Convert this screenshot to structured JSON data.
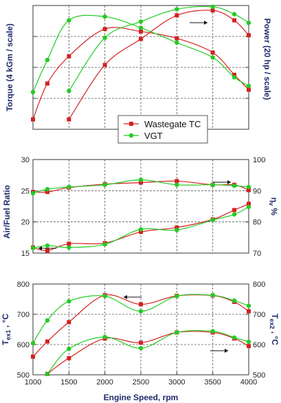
{
  "colors": {
    "wastegate": "#d42020",
    "vgt": "#22cc22",
    "axis_label": "#1f2a6b",
    "grid": "#555555"
  },
  "chart_data": [
    {
      "type": "line",
      "panel": "torque-power",
      "title": "",
      "ylabel_left": "Torque (4 kGm / scale)",
      "ylabel_right": "Power (20 hp / scale)",
      "ylabel_right_unit_sub": "",
      "x": [
        1000,
        1200,
        1500,
        2000,
        2500,
        3000,
        3500,
        3800,
        4000
      ],
      "series": [
        {
          "name": "",
          "group": "Wastegate TC",
          "quantity": "torque",
          "values": [
            0.8,
            3.7,
            5.9,
            8.1,
            7.9,
            7.35,
            6.2,
            4.4,
            3.2
          ]
        },
        {
          "name": "",
          "group": "Wastegate TC",
          "quantity": "power",
          "values": [
            null,
            null,
            0.8,
            5.2,
            7.3,
            9.2,
            9.6,
            8.8,
            7.6
          ]
        },
        {
          "name": "",
          "group": "VGT",
          "quantity": "torque",
          "values": [
            3.0,
            5.6,
            8.8,
            9.1,
            8.2,
            7.0,
            5.8,
            4.2,
            3.5
          ]
        },
        {
          "name": "",
          "group": "VGT",
          "quantity": "power",
          "values": [
            null,
            null,
            3.1,
            7.4,
            8.7,
            9.7,
            9.9,
            9.3,
            8.6
          ]
        }
      ],
      "arrow_annotations": [
        {
          "target_axis": "right",
          "direction": "right"
        }
      ],
      "ylim": [
        0,
        10
      ],
      "grid": true
    },
    {
      "type": "line",
      "panel": "afr-volumetric",
      "ylabel_left": "Air/Fuel Ratio",
      "ylabel_right": "η",
      "ylabel_right_sub": "v",
      "ylabel_right_suffix": "%",
      "left_ticks": [
        15,
        20,
        25,
        30
      ],
      "right_ticks": [
        70,
        80,
        90,
        100
      ],
      "left_ylim": [
        15,
        30
      ],
      "right_ylim": [
        70,
        100
      ],
      "x": [
        1000,
        1200,
        1500,
        2000,
        2500,
        3000,
        3500,
        3800,
        4000
      ],
      "series": [
        {
          "name": "",
          "group": "Wastegate TC",
          "axis": "right",
          "values": [
            89.6,
            89.6,
            91.0,
            92.1,
            92.6,
            93.1,
            91.9,
            91.9,
            90.2
          ]
        },
        {
          "name": "",
          "group": "Wastegate TC",
          "axis": "left",
          "values": [
            15.9,
            15.4,
            16.5,
            16.6,
            18.4,
            19.1,
            20.4,
            21.9,
            22.9
          ]
        },
        {
          "name": "",
          "group": "VGT",
          "axis": "right",
          "values": [
            89.2,
            90.5,
            91.2,
            91.9,
            93.5,
            91.9,
            91.9,
            91.6,
            91.2
          ]
        },
        {
          "name": "",
          "group": "VGT",
          "axis": "left",
          "values": [
            15.8,
            16.2,
            15.9,
            16.4,
            18.8,
            18.7,
            20.3,
            21.2,
            22.4
          ]
        }
      ],
      "arrow_annotations": [
        {
          "target_axis": "right",
          "direction": "right"
        },
        {
          "target_axis": "left",
          "direction": "left"
        }
      ],
      "grid": true
    },
    {
      "type": "line",
      "panel": "exhaust-temps",
      "ylabel_left": "T",
      "ylabel_left_sub": "ex1",
      "ylabel_left_suffix": ", °C",
      "ylabel_right": "T",
      "ylabel_right_sub": "ex2",
      "ylabel_right_suffix": ", °C",
      "left_ticks": [
        500,
        600,
        700,
        800
      ],
      "right_ticks": [
        500,
        600,
        700,
        800
      ],
      "ylim": [
        500,
        800
      ],
      "xlabel": "Engine Speed, rpm",
      "x_ticks": [
        1000,
        1500,
        2000,
        2500,
        3000,
        3500,
        4000
      ],
      "x": [
        1000,
        1200,
        1500,
        2000,
        2500,
        3000,
        3500,
        3800,
        4000
      ],
      "series": [
        {
          "name": "",
          "group": "Wastegate TC",
          "axis": "left",
          "values": [
            560,
            610,
            674,
            763,
            733,
            761,
            762,
            741,
            710
          ]
        },
        {
          "name": "",
          "group": "Wastegate TC",
          "axis": "right",
          "values": [
            null,
            503,
            555,
            620,
            606,
            640,
            640,
            620,
            595
          ]
        },
        {
          "name": "",
          "group": "VGT",
          "axis": "left",
          "values": [
            604,
            680,
            743,
            760,
            710,
            760,
            763,
            745,
            728
          ]
        },
        {
          "name": "",
          "group": "VGT",
          "axis": "right",
          "values": [
            null,
            503,
            586,
            625,
            588,
            640,
            644,
            623,
            609
          ]
        }
      ],
      "arrow_annotations": [
        {
          "target_axis": "left",
          "direction": "left"
        },
        {
          "target_axis": "right",
          "direction": "right"
        }
      ],
      "grid": true
    }
  ],
  "legend": {
    "entries": [
      {
        "label": "Wastegate TC",
        "color": "#d42020",
        "marker": "square"
      },
      {
        "label": "VGT",
        "color": "#22cc22",
        "marker": "circle"
      }
    ]
  }
}
